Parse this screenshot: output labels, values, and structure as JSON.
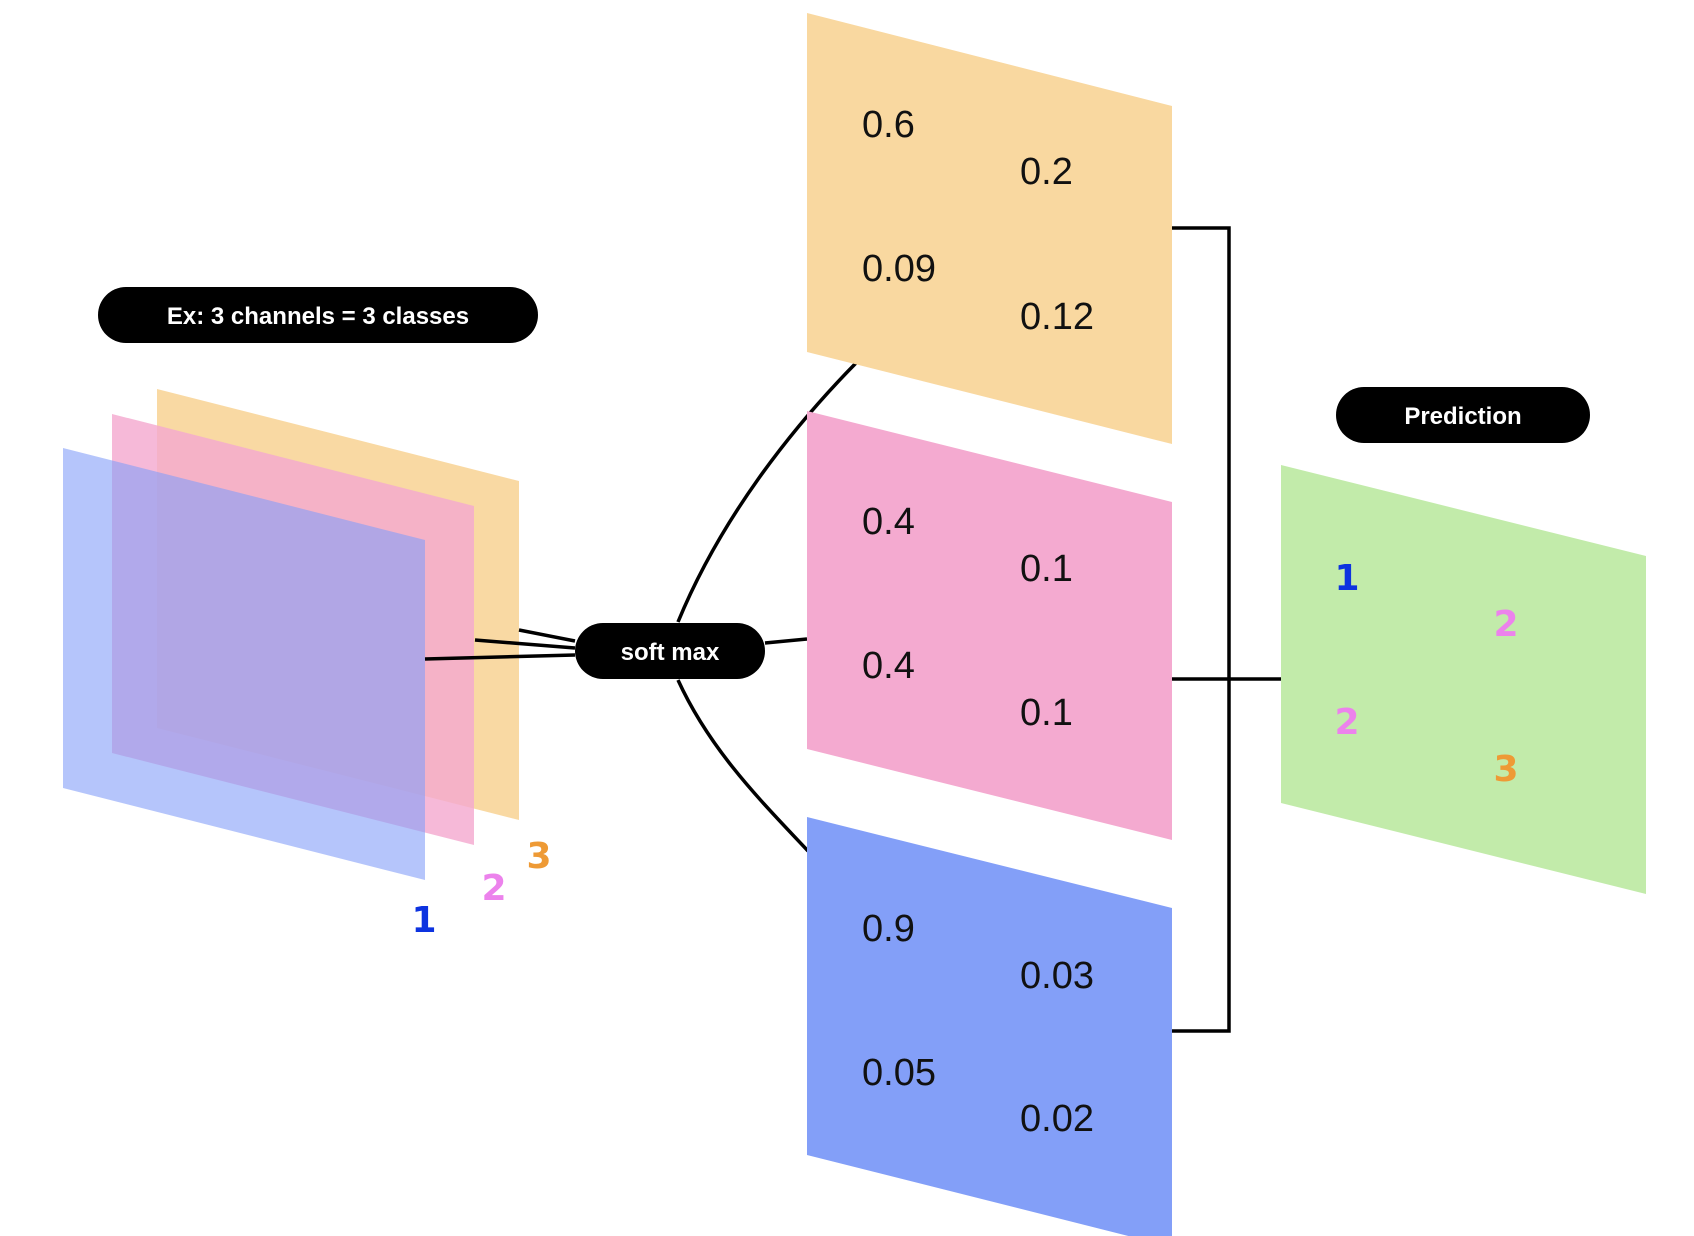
{
  "colors": {
    "orange": "#f9d8a0",
    "pink": "#f4aad0",
    "blue": "#839ff8",
    "green": "#c2ebaa",
    "label_blue": "#0d33e0",
    "label_pink": "#ec82ec",
    "label_orange": "#ee9a35"
  },
  "left_pill": {
    "label": "Ex: 3 channels = 3 classes"
  },
  "softmax_pill": {
    "label": "soft max"
  },
  "prediction_pill": {
    "label": "Prediction"
  },
  "channel_labels": [
    "1",
    "2",
    "3"
  ],
  "maps": {
    "orange": {
      "v00": "0.6",
      "v01": "0.2",
      "v10": "0.09",
      "v11": "0.12"
    },
    "pink": {
      "v00": "0.4",
      "v01": "0.1",
      "v10": "0.4",
      "v11": "0.1"
    },
    "blue": {
      "v00": "0.9",
      "v01": "0.03",
      "v10": "0.05",
      "v11": "0.02"
    }
  },
  "prediction": {
    "v00": "1",
    "v01": "2",
    "v10": "2",
    "v11": "3"
  }
}
